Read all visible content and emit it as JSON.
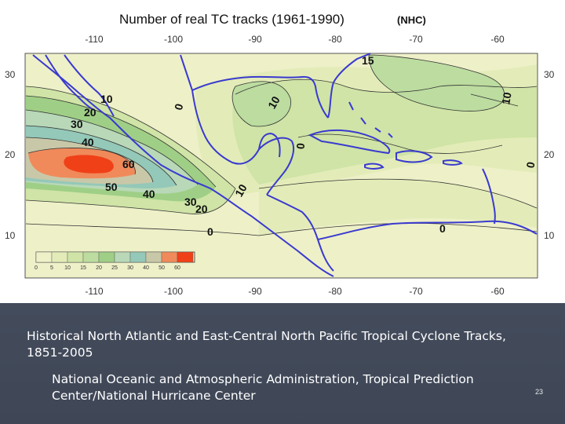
{
  "map": {
    "title": "Number of real TC tracks (1961-1990)",
    "source_tag": "(NHC)",
    "lon_ticks": [
      "-110",
      "-100",
      "-90",
      "-80",
      "-70",
      "-60"
    ],
    "lat_ticks": [
      "30",
      "20",
      "10"
    ],
    "contour_labels": [
      "15",
      "10",
      "20",
      "30",
      "40",
      "60",
      "50",
      "40",
      "30",
      "20",
      "0",
      "10",
      "10",
      "0",
      "10",
      "0",
      "0",
      "0"
    ],
    "legend": {
      "ticks": [
        "0",
        "5",
        "10",
        "15",
        "20",
        "25",
        "30",
        "40",
        "50",
        "60"
      ],
      "colors": [
        "#eef0c8",
        "#e3ecb8",
        "#cfe4a6",
        "#bcdca0",
        "#9fcf86",
        "#b8d8b8",
        "#94c8b8",
        "#c8c8a8",
        "#f08a5a",
        "#f04018"
      ]
    },
    "colors": {
      "low": "#eef0c8",
      "mid": "#cfe4a6",
      "green": "#9fcf86",
      "grey": "#c8c8a8",
      "orange": "#f08a5a",
      "red": "#f04018",
      "coast": "#3a3acf"
    }
  },
  "caption": {
    "text": "Historical North Atlantic and East-Central North Pacific Tropical Cyclone Tracks, 1851-2005",
    "source": "National Oceanic and Atmospheric Administration, Tropical Prediction Center/National Hurricane Center"
  },
  "slide": {
    "page_number": "23"
  }
}
